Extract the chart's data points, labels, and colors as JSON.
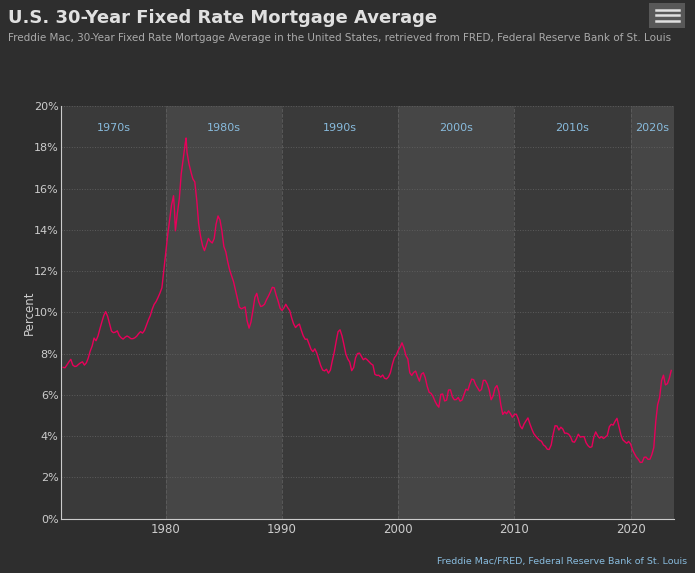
{
  "title": "U.S. 30-Year Fixed Rate Mortgage Average",
  "subtitle": "Freddie Mac, 30-Year Fixed Rate Mortgage Average in the United States, retrieved from FRED, Federal Reserve Bank of St. Louis",
  "source": "Freddie Mac/FRED, Federal Reserve Bank of St. Louis",
  "ylabel": "Percent",
  "bg_color": "#2e2e2e",
  "plot_bg_odd": "#3a3a3a",
  "plot_bg_even": "#464646",
  "text_color": "#cccccc",
  "line_color": "#e8005a",
  "grid_color": "#606060",
  "decade_label_color": "#88bbdd",
  "ylim": [
    0,
    20
  ],
  "yticks": [
    0,
    2,
    4,
    6,
    8,
    10,
    12,
    14,
    16,
    18,
    20
  ],
  "decade_bands": [
    {
      "label": "1970s",
      "x_start": 1971.0,
      "x_end": 1980.0
    },
    {
      "label": "1980s",
      "x_start": 1980.0,
      "x_end": 1990.0
    },
    {
      "label": "1990s",
      "x_start": 1990.0,
      "x_end": 2000.0
    },
    {
      "label": "2000s",
      "x_start": 2000.0,
      "x_end": 2010.0
    },
    {
      "label": "2010s",
      "x_start": 2010.0,
      "x_end": 2020.0
    },
    {
      "label": "2020s",
      "x_start": 2020.0,
      "x_end": 2023.75
    }
  ],
  "xticks": [
    1980,
    1990,
    2000,
    2010,
    2020
  ],
  "xlim": [
    1971.0,
    2023.75
  ],
  "mortgage_data": [
    [
      1971.17,
      7.33
    ],
    [
      1971.33,
      7.31
    ],
    [
      1971.5,
      7.45
    ],
    [
      1971.67,
      7.6
    ],
    [
      1971.83,
      7.72
    ],
    [
      1972.0,
      7.44
    ],
    [
      1972.17,
      7.37
    ],
    [
      1972.33,
      7.39
    ],
    [
      1972.5,
      7.48
    ],
    [
      1972.67,
      7.55
    ],
    [
      1972.83,
      7.6
    ],
    [
      1973.0,
      7.44
    ],
    [
      1973.17,
      7.55
    ],
    [
      1973.33,
      7.78
    ],
    [
      1973.5,
      8.12
    ],
    [
      1973.67,
      8.37
    ],
    [
      1973.83,
      8.75
    ],
    [
      1974.0,
      8.62
    ],
    [
      1974.17,
      8.85
    ],
    [
      1974.33,
      9.19
    ],
    [
      1974.5,
      9.53
    ],
    [
      1974.67,
      9.84
    ],
    [
      1974.83,
      10.03
    ],
    [
      1975.0,
      9.8
    ],
    [
      1975.17,
      9.44
    ],
    [
      1975.33,
      9.09
    ],
    [
      1975.5,
      9.01
    ],
    [
      1975.67,
      9.04
    ],
    [
      1975.83,
      9.1
    ],
    [
      1976.0,
      8.87
    ],
    [
      1976.17,
      8.76
    ],
    [
      1976.33,
      8.7
    ],
    [
      1976.5,
      8.79
    ],
    [
      1976.67,
      8.85
    ],
    [
      1976.83,
      8.8
    ],
    [
      1977.0,
      8.72
    ],
    [
      1977.17,
      8.72
    ],
    [
      1977.33,
      8.76
    ],
    [
      1977.5,
      8.84
    ],
    [
      1977.67,
      8.97
    ],
    [
      1977.83,
      9.06
    ],
    [
      1978.0,
      8.99
    ],
    [
      1978.17,
      9.12
    ],
    [
      1978.33,
      9.37
    ],
    [
      1978.5,
      9.62
    ],
    [
      1978.67,
      9.84
    ],
    [
      1978.83,
      10.14
    ],
    [
      1979.0,
      10.38
    ],
    [
      1979.17,
      10.52
    ],
    [
      1979.33,
      10.71
    ],
    [
      1979.5,
      10.93
    ],
    [
      1979.67,
      11.19
    ],
    [
      1979.83,
      12.01
    ],
    [
      1980.0,
      12.88
    ],
    [
      1980.17,
      13.76
    ],
    [
      1980.33,
      14.45
    ],
    [
      1980.5,
      15.2
    ],
    [
      1980.67,
      15.65
    ],
    [
      1980.75,
      14.95
    ],
    [
      1980.83,
      13.95
    ],
    [
      1981.0,
      14.8
    ],
    [
      1981.17,
      15.51
    ],
    [
      1981.33,
      16.7
    ],
    [
      1981.5,
      17.45
    ],
    [
      1981.67,
      18.16
    ],
    [
      1981.75,
      18.45
    ],
    [
      1981.83,
      17.75
    ],
    [
      1982.0,
      17.19
    ],
    [
      1982.17,
      16.8
    ],
    [
      1982.33,
      16.47
    ],
    [
      1982.5,
      16.32
    ],
    [
      1982.67,
      15.42
    ],
    [
      1982.83,
      14.3
    ],
    [
      1983.0,
      13.67
    ],
    [
      1983.17,
      13.23
    ],
    [
      1983.33,
      12.99
    ],
    [
      1983.5,
      13.27
    ],
    [
      1983.67,
      13.58
    ],
    [
      1983.83,
      13.44
    ],
    [
      1984.0,
      13.36
    ],
    [
      1984.17,
      13.58
    ],
    [
      1984.33,
      14.27
    ],
    [
      1984.5,
      14.67
    ],
    [
      1984.67,
      14.47
    ],
    [
      1984.83,
      13.95
    ],
    [
      1985.0,
      13.19
    ],
    [
      1985.17,
      12.93
    ],
    [
      1985.33,
      12.46
    ],
    [
      1985.5,
      12.05
    ],
    [
      1985.67,
      11.77
    ],
    [
      1985.83,
      11.49
    ],
    [
      1986.0,
      11.08
    ],
    [
      1986.17,
      10.66
    ],
    [
      1986.33,
      10.25
    ],
    [
      1986.5,
      10.17
    ],
    [
      1986.67,
      10.21
    ],
    [
      1986.83,
      10.26
    ],
    [
      1987.0,
      9.59
    ],
    [
      1987.17,
      9.23
    ],
    [
      1987.33,
      9.52
    ],
    [
      1987.5,
      10.09
    ],
    [
      1987.67,
      10.72
    ],
    [
      1987.83,
      10.92
    ],
    [
      1988.0,
      10.51
    ],
    [
      1988.17,
      10.28
    ],
    [
      1988.33,
      10.31
    ],
    [
      1988.5,
      10.39
    ],
    [
      1988.67,
      10.61
    ],
    [
      1988.83,
      10.78
    ],
    [
      1989.0,
      10.98
    ],
    [
      1989.17,
      11.21
    ],
    [
      1989.33,
      11.19
    ],
    [
      1989.5,
      10.84
    ],
    [
      1989.67,
      10.54
    ],
    [
      1989.83,
      10.21
    ],
    [
      1990.0,
      10.09
    ],
    [
      1990.17,
      10.21
    ],
    [
      1990.33,
      10.39
    ],
    [
      1990.5,
      10.22
    ],
    [
      1990.67,
      10.08
    ],
    [
      1990.83,
      9.74
    ],
    [
      1991.0,
      9.44
    ],
    [
      1991.17,
      9.26
    ],
    [
      1991.33,
      9.36
    ],
    [
      1991.5,
      9.43
    ],
    [
      1991.67,
      9.12
    ],
    [
      1991.83,
      8.86
    ],
    [
      1992.0,
      8.69
    ],
    [
      1992.17,
      8.7
    ],
    [
      1992.33,
      8.47
    ],
    [
      1992.5,
      8.21
    ],
    [
      1992.67,
      8.09
    ],
    [
      1992.83,
      8.23
    ],
    [
      1993.0,
      8.02
    ],
    [
      1993.17,
      7.71
    ],
    [
      1993.33,
      7.42
    ],
    [
      1993.5,
      7.2
    ],
    [
      1993.67,
      7.16
    ],
    [
      1993.83,
      7.24
    ],
    [
      1994.0,
      7.05
    ],
    [
      1994.17,
      7.2
    ],
    [
      1994.33,
      7.64
    ],
    [
      1994.5,
      8.06
    ],
    [
      1994.67,
      8.6
    ],
    [
      1994.83,
      9.06
    ],
    [
      1995.0,
      9.15
    ],
    [
      1995.17,
      8.85
    ],
    [
      1995.33,
      8.44
    ],
    [
      1995.5,
      7.97
    ],
    [
      1995.67,
      7.73
    ],
    [
      1995.83,
      7.59
    ],
    [
      1996.0,
      7.17
    ],
    [
      1996.17,
      7.32
    ],
    [
      1996.33,
      7.79
    ],
    [
      1996.5,
      8.0
    ],
    [
      1996.67,
      8.02
    ],
    [
      1996.83,
      7.87
    ],
    [
      1997.0,
      7.7
    ],
    [
      1997.17,
      7.77
    ],
    [
      1997.33,
      7.7
    ],
    [
      1997.5,
      7.6
    ],
    [
      1997.67,
      7.5
    ],
    [
      1997.83,
      7.44
    ],
    [
      1998.0,
      6.99
    ],
    [
      1998.17,
      6.94
    ],
    [
      1998.33,
      6.95
    ],
    [
      1998.5,
      6.86
    ],
    [
      1998.67,
      6.96
    ],
    [
      1998.83,
      6.8
    ],
    [
      1999.0,
      6.77
    ],
    [
      1999.17,
      6.87
    ],
    [
      1999.33,
      7.07
    ],
    [
      1999.5,
      7.47
    ],
    [
      1999.67,
      7.79
    ],
    [
      1999.83,
      7.91
    ],
    [
      2000.0,
      8.15
    ],
    [
      2000.17,
      8.31
    ],
    [
      2000.33,
      8.52
    ],
    [
      2000.5,
      8.27
    ],
    [
      2000.67,
      7.9
    ],
    [
      2000.83,
      7.74
    ],
    [
      2001.0,
      7.07
    ],
    [
      2001.17,
      6.94
    ],
    [
      2001.33,
      7.08
    ],
    [
      2001.5,
      7.15
    ],
    [
      2001.67,
      6.88
    ],
    [
      2001.83,
      6.66
    ],
    [
      2002.0,
      7.0
    ],
    [
      2002.17,
      7.07
    ],
    [
      2002.33,
      6.83
    ],
    [
      2002.5,
      6.41
    ],
    [
      2002.67,
      6.12
    ],
    [
      2002.83,
      6.07
    ],
    [
      2003.0,
      5.92
    ],
    [
      2003.17,
      5.69
    ],
    [
      2003.33,
      5.52
    ],
    [
      2003.5,
      5.4
    ],
    [
      2003.67,
      6.02
    ],
    [
      2003.83,
      6.04
    ],
    [
      2004.0,
      5.7
    ],
    [
      2004.17,
      5.74
    ],
    [
      2004.33,
      6.23
    ],
    [
      2004.5,
      6.24
    ],
    [
      2004.67,
      5.9
    ],
    [
      2004.83,
      5.76
    ],
    [
      2005.0,
      5.77
    ],
    [
      2005.17,
      5.87
    ],
    [
      2005.33,
      5.69
    ],
    [
      2005.5,
      5.75
    ],
    [
      2005.67,
      6.01
    ],
    [
      2005.83,
      6.27
    ],
    [
      2006.0,
      6.22
    ],
    [
      2006.17,
      6.53
    ],
    [
      2006.33,
      6.76
    ],
    [
      2006.5,
      6.73
    ],
    [
      2006.67,
      6.49
    ],
    [
      2006.83,
      6.34
    ],
    [
      2007.0,
      6.18
    ],
    [
      2007.17,
      6.26
    ],
    [
      2007.33,
      6.7
    ],
    [
      2007.5,
      6.7
    ],
    [
      2007.67,
      6.52
    ],
    [
      2007.83,
      6.24
    ],
    [
      2008.0,
      5.76
    ],
    [
      2008.17,
      5.94
    ],
    [
      2008.33,
      6.32
    ],
    [
      2008.5,
      6.45
    ],
    [
      2008.67,
      6.14
    ],
    [
      2008.83,
      5.53
    ],
    [
      2009.0,
      5.05
    ],
    [
      2009.17,
      5.17
    ],
    [
      2009.33,
      5.08
    ],
    [
      2009.5,
      5.22
    ],
    [
      2009.67,
      5.08
    ],
    [
      2009.83,
      4.91
    ],
    [
      2010.0,
      5.05
    ],
    [
      2010.17,
      5.06
    ],
    [
      2010.33,
      4.84
    ],
    [
      2010.5,
      4.49
    ],
    [
      2010.67,
      4.35
    ],
    [
      2010.83,
      4.58
    ],
    [
      2011.0,
      4.74
    ],
    [
      2011.17,
      4.88
    ],
    [
      2011.33,
      4.6
    ],
    [
      2011.5,
      4.34
    ],
    [
      2011.67,
      4.12
    ],
    [
      2011.83,
      4.0
    ],
    [
      2012.0,
      3.89
    ],
    [
      2012.17,
      3.79
    ],
    [
      2012.33,
      3.75
    ],
    [
      2012.5,
      3.57
    ],
    [
      2012.67,
      3.5
    ],
    [
      2012.83,
      3.36
    ],
    [
      2013.0,
      3.35
    ],
    [
      2013.17,
      3.57
    ],
    [
      2013.33,
      4.07
    ],
    [
      2013.5,
      4.5
    ],
    [
      2013.67,
      4.49
    ],
    [
      2013.83,
      4.29
    ],
    [
      2014.0,
      4.43
    ],
    [
      2014.17,
      4.34
    ],
    [
      2014.33,
      4.14
    ],
    [
      2014.5,
      4.14
    ],
    [
      2014.67,
      4.09
    ],
    [
      2014.83,
      3.97
    ],
    [
      2015.0,
      3.73
    ],
    [
      2015.17,
      3.7
    ],
    [
      2015.33,
      3.86
    ],
    [
      2015.5,
      4.09
    ],
    [
      2015.67,
      3.95
    ],
    [
      2015.83,
      3.97
    ],
    [
      2016.0,
      3.97
    ],
    [
      2016.17,
      3.68
    ],
    [
      2016.33,
      3.54
    ],
    [
      2016.5,
      3.45
    ],
    [
      2016.67,
      3.48
    ],
    [
      2016.83,
      3.94
    ],
    [
      2017.0,
      4.2
    ],
    [
      2017.17,
      4.01
    ],
    [
      2017.33,
      3.9
    ],
    [
      2017.5,
      3.97
    ],
    [
      2017.67,
      3.88
    ],
    [
      2017.83,
      3.95
    ],
    [
      2018.0,
      4.03
    ],
    [
      2018.17,
      4.45
    ],
    [
      2018.33,
      4.57
    ],
    [
      2018.5,
      4.53
    ],
    [
      2018.67,
      4.72
    ],
    [
      2018.83,
      4.86
    ],
    [
      2019.0,
      4.46
    ],
    [
      2019.17,
      4.06
    ],
    [
      2019.33,
      3.82
    ],
    [
      2019.5,
      3.73
    ],
    [
      2019.67,
      3.65
    ],
    [
      2019.83,
      3.74
    ],
    [
      2020.0,
      3.62
    ],
    [
      2020.17,
      3.33
    ],
    [
      2020.33,
      3.15
    ],
    [
      2020.5,
      2.98
    ],
    [
      2020.67,
      2.87
    ],
    [
      2020.83,
      2.72
    ],
    [
      2021.0,
      2.73
    ],
    [
      2021.17,
      2.97
    ],
    [
      2021.33,
      2.98
    ],
    [
      2021.5,
      2.87
    ],
    [
      2021.67,
      2.88
    ],
    [
      2021.83,
      3.1
    ],
    [
      2022.0,
      3.45
    ],
    [
      2022.17,
      4.72
    ],
    [
      2022.33,
      5.52
    ],
    [
      2022.5,
      5.87
    ],
    [
      2022.67,
      6.7
    ],
    [
      2022.83,
      6.95
    ],
    [
      2023.0,
      6.48
    ],
    [
      2023.17,
      6.54
    ],
    [
      2023.33,
      6.79
    ],
    [
      2023.5,
      7.18
    ]
  ]
}
